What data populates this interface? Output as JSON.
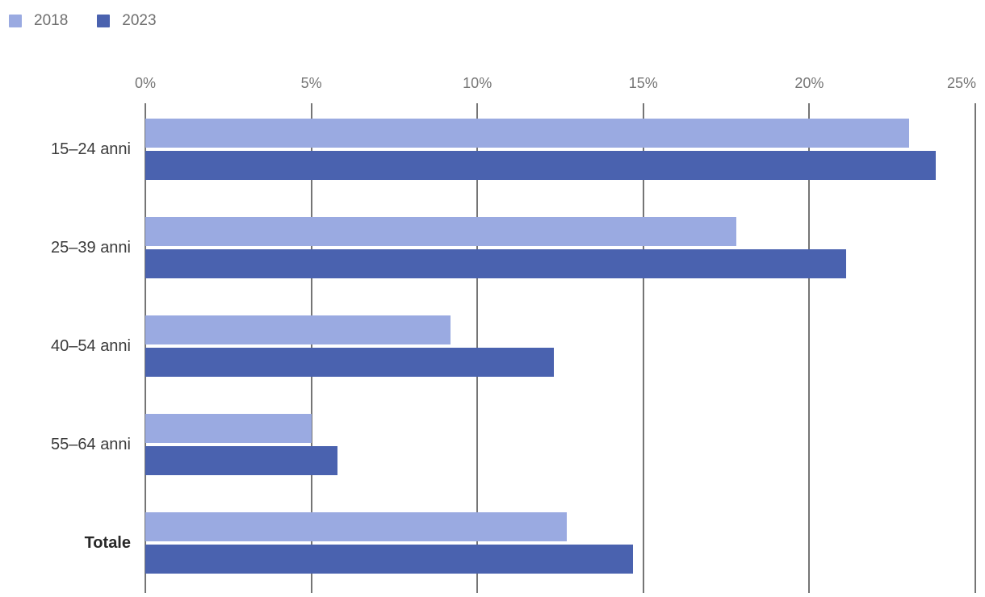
{
  "chart_data": {
    "type": "bar",
    "orientation": "horizontal",
    "title": "",
    "categories": [
      "15–24 anni",
      "25–39 anni",
      "40–54 anni",
      "55–64 anni",
      "Totale"
    ],
    "bold_categories": [
      "Totale"
    ],
    "series": [
      {
        "name": "2018",
        "color": "#9AAAE1",
        "values": [
          23.0,
          17.8,
          9.2,
          5.0,
          12.7
        ]
      },
      {
        "name": "2023",
        "color": "#4A62AF",
        "values": [
          23.8,
          21.1,
          12.3,
          5.8,
          14.7
        ]
      }
    ],
    "value_unit": "%",
    "x_axis": {
      "position": "top",
      "min": 0,
      "max": 25,
      "ticks": [
        0,
        5,
        10,
        15,
        20,
        25
      ],
      "tick_labels": [
        "0%",
        "5%",
        "10%",
        "15%",
        "20%",
        "25%"
      ]
    },
    "grid": true,
    "gridline_color": "#757575",
    "legend_position": "top-left",
    "colors": {
      "background": "#ffffff",
      "axis_text": "#757575",
      "category_text": "#3b3b3b",
      "legend_text": "#6e6e6e"
    }
  }
}
